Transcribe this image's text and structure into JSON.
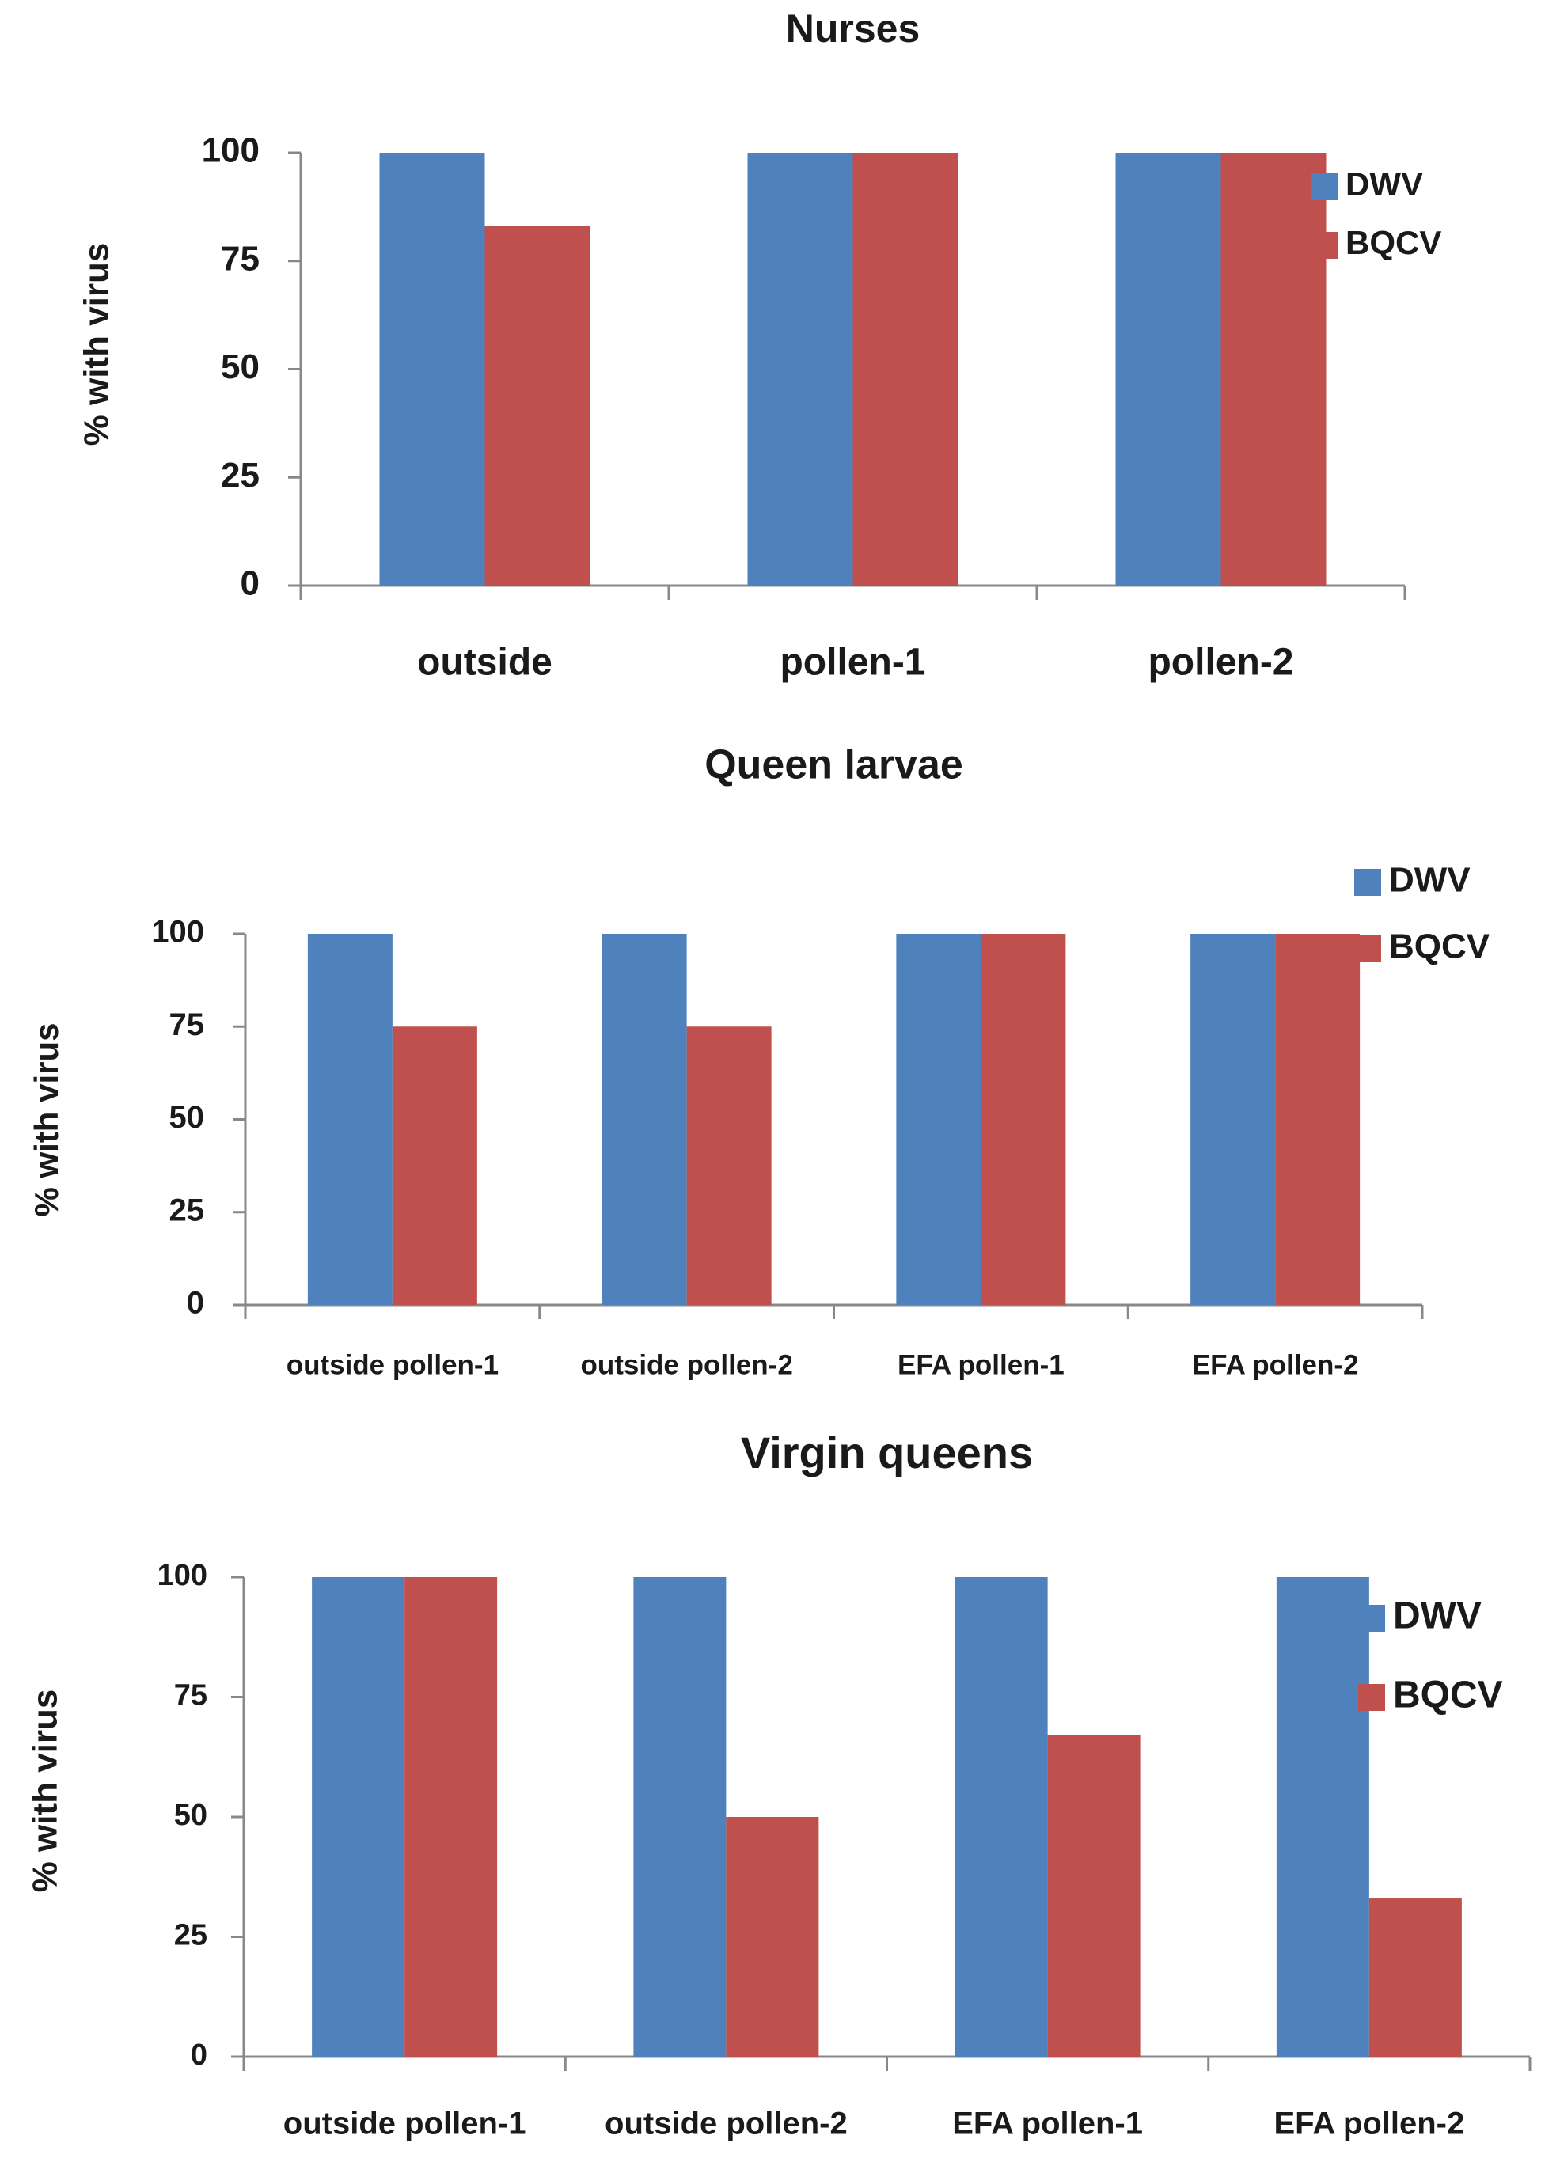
{
  "chart_data": [
    {
      "type": "bar",
      "title": "Nurses",
      "categories": [
        "outside",
        "pollen-1",
        "pollen-2"
      ],
      "series": [
        {
          "name": "DWV",
          "values": [
            100,
            100,
            100
          ]
        },
        {
          "name": "BQCV",
          "values": [
            83,
            100,
            100
          ]
        }
      ],
      "xlabel": "",
      "ylabel": "% with virus",
      "ylim": [
        0,
        100
      ],
      "yticks": [
        "0",
        "25",
        "50",
        "75",
        "100"
      ],
      "grid": false,
      "legend": "right"
    },
    {
      "type": "bar",
      "title": "Queen larvae",
      "categories": [
        "outside pollen-1",
        "outside pollen-2",
        "EFA pollen-1",
        "EFA pollen-2"
      ],
      "series": [
        {
          "name": "DWV",
          "values": [
            100,
            100,
            100,
            100
          ]
        },
        {
          "name": "BQCV",
          "values": [
            75,
            75,
            100,
            100
          ]
        }
      ],
      "xlabel": "",
      "ylabel": "% with virus",
      "ylim": [
        0,
        100
      ],
      "yticks": [
        "0",
        "25",
        "50",
        "75",
        "100"
      ],
      "grid": false,
      "legend": "top-right"
    },
    {
      "type": "bar",
      "title": "Virgin queens",
      "categories": [
        "outside pollen-1",
        "outside pollen-2",
        "EFA pollen-1",
        "EFA pollen-2"
      ],
      "series": [
        {
          "name": "DWV",
          "values": [
            100,
            100,
            100,
            100
          ]
        },
        {
          "name": "BQCV",
          "values": [
            100,
            50,
            67,
            33
          ]
        }
      ],
      "xlabel": "",
      "ylabel": "% with virus",
      "ylim": [
        0,
        100
      ],
      "yticks": [
        "0",
        "25",
        "50",
        "75",
        "100"
      ],
      "grid": false,
      "legend": "right"
    }
  ],
  "colors": {
    "DWV": "#4f81bd",
    "BQCV": "#c0504d",
    "axis": "#888888",
    "text": "#1a1a1a"
  }
}
